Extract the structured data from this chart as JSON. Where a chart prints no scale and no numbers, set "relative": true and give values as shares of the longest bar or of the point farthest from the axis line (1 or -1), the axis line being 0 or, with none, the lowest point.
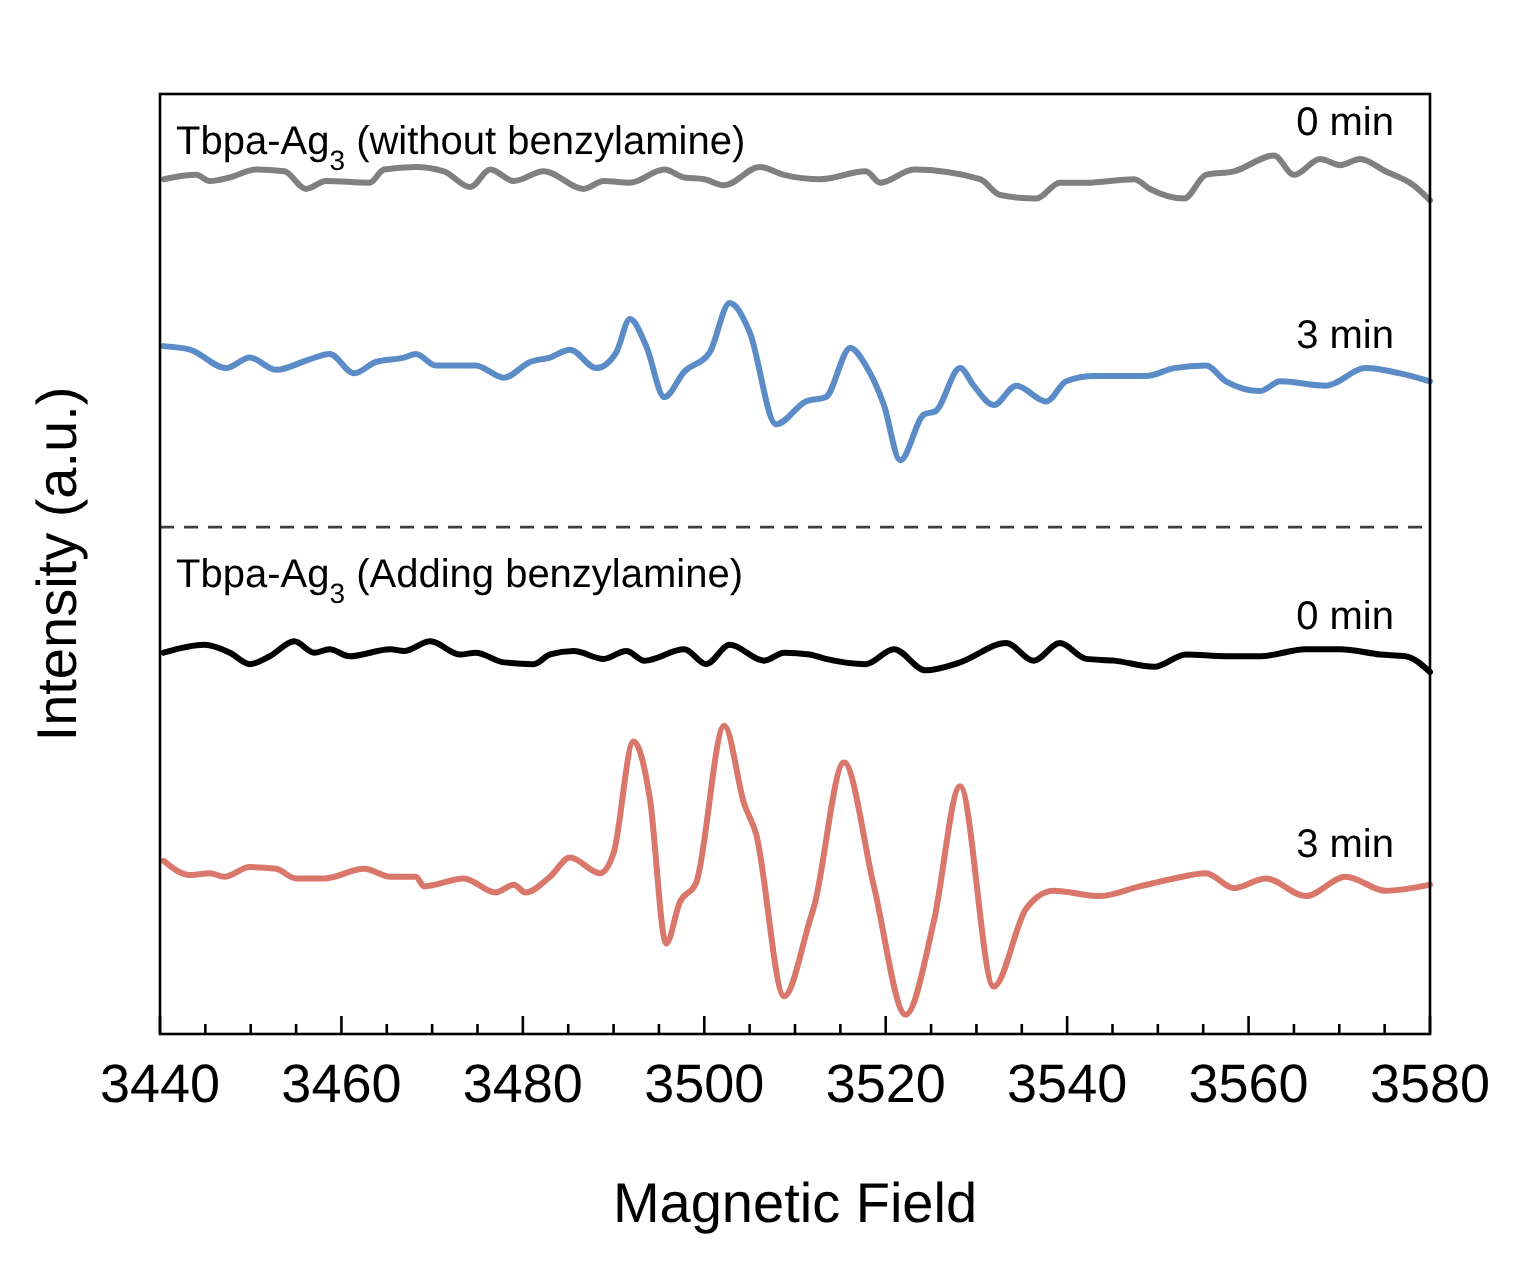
{
  "chart_data": {
    "type": "line",
    "relative": true,
    "xlabel": "Magnetic Field",
    "ylabel": "Intensity (a.u.)",
    "xlim": [
      3440,
      3580
    ],
    "xticks": [
      3440,
      {
        "value": 3445,
        "label": null
      },
      {
        "value": 3450,
        "label": null
      },
      {
        "value": 3455,
        "label": null
      },
      3460,
      {
        "value": 3465,
        "label": null
      },
      {
        "value": 3470,
        "label": null
      },
      {
        "value": 3475,
        "label": null
      },
      3480,
      {
        "value": 3485,
        "label": null
      },
      {
        "value": 3490,
        "label": null
      },
      {
        "value": 3495,
        "label": null
      },
      3500,
      {
        "value": 3505,
        "label": null
      },
      {
        "value": 3510,
        "label": null
      },
      {
        "value": 3515,
        "label": null
      },
      3520,
      {
        "value": 3525,
        "label": null
      },
      {
        "value": 3530,
        "label": null
      },
      {
        "value": 3535,
        "label": null
      },
      3540,
      {
        "value": 3545,
        "label": null
      },
      {
        "value": 3550,
        "label": null
      },
      {
        "value": 3555,
        "label": null
      },
      3560,
      {
        "value": 3565,
        "label": null
      },
      {
        "value": 3570,
        "label": null
      },
      {
        "value": 3575,
        "label": null
      },
      3580
    ],
    "tick_labels": "x",
    "line_style": "solid",
    "marker": "none",
    "annotations": [
      "Tbpa-Ag$_{3}$ (without benzylamine)",
      "Tbpa-Ag$_{3}$ (Adding benzylamine)"
    ],
    "ref_lines": [
      {
        "axis": "y",
        "value": 0.577,
        "color": "#404040",
        "line_style": "dashed"
      }
    ],
    "series": [
      {
        "name": "0 min",
        "color": "#808080",
        "x": [
          3440.4,
          3444.0,
          3445.5,
          3447.7,
          3450.6,
          3453.7,
          3456.1,
          3458.3,
          3463.1,
          3464.7,
          3468.2,
          3471.3,
          3474.2,
          3476.4,
          3479.0,
          3482.3,
          3486.7,
          3488.9,
          3491.8,
          3495.6,
          3497.8,
          3500.0,
          3502.2,
          3506.1,
          3508.8,
          3512.8,
          3517.8,
          3519.4,
          3523.1,
          3530.4,
          3532.6,
          3536.6,
          3539.2,
          3542.1,
          3547.4,
          3549.1,
          3552.9,
          3555.3,
          3558.4,
          3562.8,
          3565.0,
          3567.9,
          3570.1,
          3572.3,
          3575.1,
          3578.2,
          3580
        ],
        "values": [
          0.973,
          0.978,
          0.971,
          0.975,
          0.984,
          0.982,
          0.962,
          0.971,
          0.969,
          0.984,
          0.987,
          0.982,
          0.964,
          0.984,
          0.971,
          0.982,
          0.962,
          0.971,
          0.969,
          0.984,
          0.975,
          0.973,
          0.966,
          0.987,
          0.978,
          0.973,
          0.982,
          0.969,
          0.984,
          0.973,
          0.955,
          0.951,
          0.969,
          0.969,
          0.973,
          0.962,
          0.951,
          0.978,
          0.982,
          1.0,
          0.978,
          0.996,
          0.989,
          0.996,
          0.982,
          0.966,
          0.949
        ]
      },
      {
        "name": "3 min",
        "color": "#5b8cc7",
        "x": [
          3440.4,
          3443.3,
          3447.3,
          3449.9,
          3452.8,
          3456.5,
          3458.7,
          3461.4,
          3463.8,
          3466.9,
          3468.2,
          3470.4,
          3474.8,
          3477.9,
          3480.8,
          3483.0,
          3485.2,
          3488.1,
          3490.3,
          3491.8,
          3493.6,
          3495.6,
          3497.8,
          3500.6,
          3502.8,
          3505.0,
          3507.9,
          3511.2,
          3513.4,
          3516.1,
          3517.8,
          3519.8,
          3521.6,
          3524.2,
          3525.5,
          3528.2,
          3529.7,
          3531.9,
          3534.4,
          3537.7,
          3539.9,
          3543.0,
          3548.7,
          3551.8,
          3555.3,
          3557.5,
          3561.3,
          3563.5,
          3568.5,
          3572.9,
          3576.7,
          3580
        ],
        "values": [
          0.783,
          0.779,
          0.758,
          0.77,
          0.756,
          0.768,
          0.774,
          0.752,
          0.765,
          0.77,
          0.774,
          0.761,
          0.761,
          0.747,
          0.765,
          0.77,
          0.779,
          0.758,
          0.776,
          0.814,
          0.783,
          0.725,
          0.754,
          0.776,
          0.832,
          0.799,
          0.694,
          0.72,
          0.725,
          0.781,
          0.761,
          0.716,
          0.653,
          0.705,
          0.709,
          0.758,
          0.738,
          0.716,
          0.738,
          0.72,
          0.743,
          0.749,
          0.749,
          0.758,
          0.761,
          0.743,
          0.732,
          0.743,
          0.738,
          0.758,
          0.752,
          0.743
        ]
      },
      {
        "name": "0 min",
        "color": "#000000",
        "x": [
          3440.4,
          3444.9,
          3447.7,
          3449.9,
          3452.1,
          3454.8,
          3457.0,
          3458.7,
          3460.9,
          3465.4,
          3466.9,
          3469.8,
          3473.1,
          3474.8,
          3477.9,
          3481.2,
          3483.0,
          3485.6,
          3488.9,
          3491.4,
          3493.4,
          3497.8,
          3500.2,
          3502.8,
          3506.6,
          3508.8,
          3511.6,
          3513.4,
          3517.8,
          3520.9,
          3524.4,
          3528.2,
          3533.3,
          3536.3,
          3539.2,
          3542.1,
          3545.2,
          3549.6,
          3553.1,
          3557.5,
          3561.3,
          3566.3,
          3570.1,
          3574.5,
          3577.3,
          3580
        ],
        "values": [
          0.434,
          0.443,
          0.434,
          0.421,
          0.43,
          0.447,
          0.434,
          0.438,
          0.43,
          0.438,
          0.436,
          0.447,
          0.432,
          0.434,
          0.423,
          0.421,
          0.432,
          0.436,
          0.427,
          0.436,
          0.425,
          0.438,
          0.421,
          0.443,
          0.425,
          0.434,
          0.432,
          0.427,
          0.421,
          0.438,
          0.414,
          0.423,
          0.445,
          0.425,
          0.445,
          0.427,
          0.425,
          0.418,
          0.432,
          0.43,
          0.43,
          0.438,
          0.438,
          0.432,
          0.43,
          0.412
        ]
      },
      {
        "name": "3 min",
        "color": "#d9776b",
        "x": [
          3440.4,
          3443.3,
          3445.5,
          3447.1,
          3449.9,
          3452.8,
          3455.0,
          3458.1,
          3462.5,
          3465.4,
          3468.2,
          3469.1,
          3473.5,
          3477.0,
          3479.0,
          3480.3,
          3483.0,
          3485.2,
          3488.5,
          3490.0,
          3492.2,
          3494.0,
          3495.8,
          3497.3,
          3499.1,
          3502.2,
          3504.4,
          3505.7,
          3508.8,
          3511.6,
          3512.1,
          3515.4,
          3518.7,
          3522.2,
          3525.3,
          3528.2,
          3531.9,
          3535.5,
          3538.5,
          3543.6,
          3548.0,
          3551.8,
          3555.3,
          3558.4,
          3561.9,
          3566.3,
          3570.7,
          3575.1,
          3580
        ],
        "values": [
          0.197,
          0.181,
          0.183,
          0.179,
          0.19,
          0.188,
          0.177,
          0.177,
          0.188,
          0.179,
          0.179,
          0.168,
          0.177,
          0.161,
          0.17,
          0.161,
          0.179,
          0.201,
          0.183,
          0.206,
          0.333,
          0.268,
          0.103,
          0.15,
          0.172,
          0.351,
          0.262,
          0.228,
          0.043,
          0.128,
          0.145,
          0.309,
          0.168,
          0.022,
          0.128,
          0.282,
          0.054,
          0.143,
          0.163,
          0.157,
          0.168,
          0.177,
          0.183,
          0.166,
          0.177,
          0.157,
          0.179,
          0.163,
          0.17
        ]
      }
    ]
  }
}
